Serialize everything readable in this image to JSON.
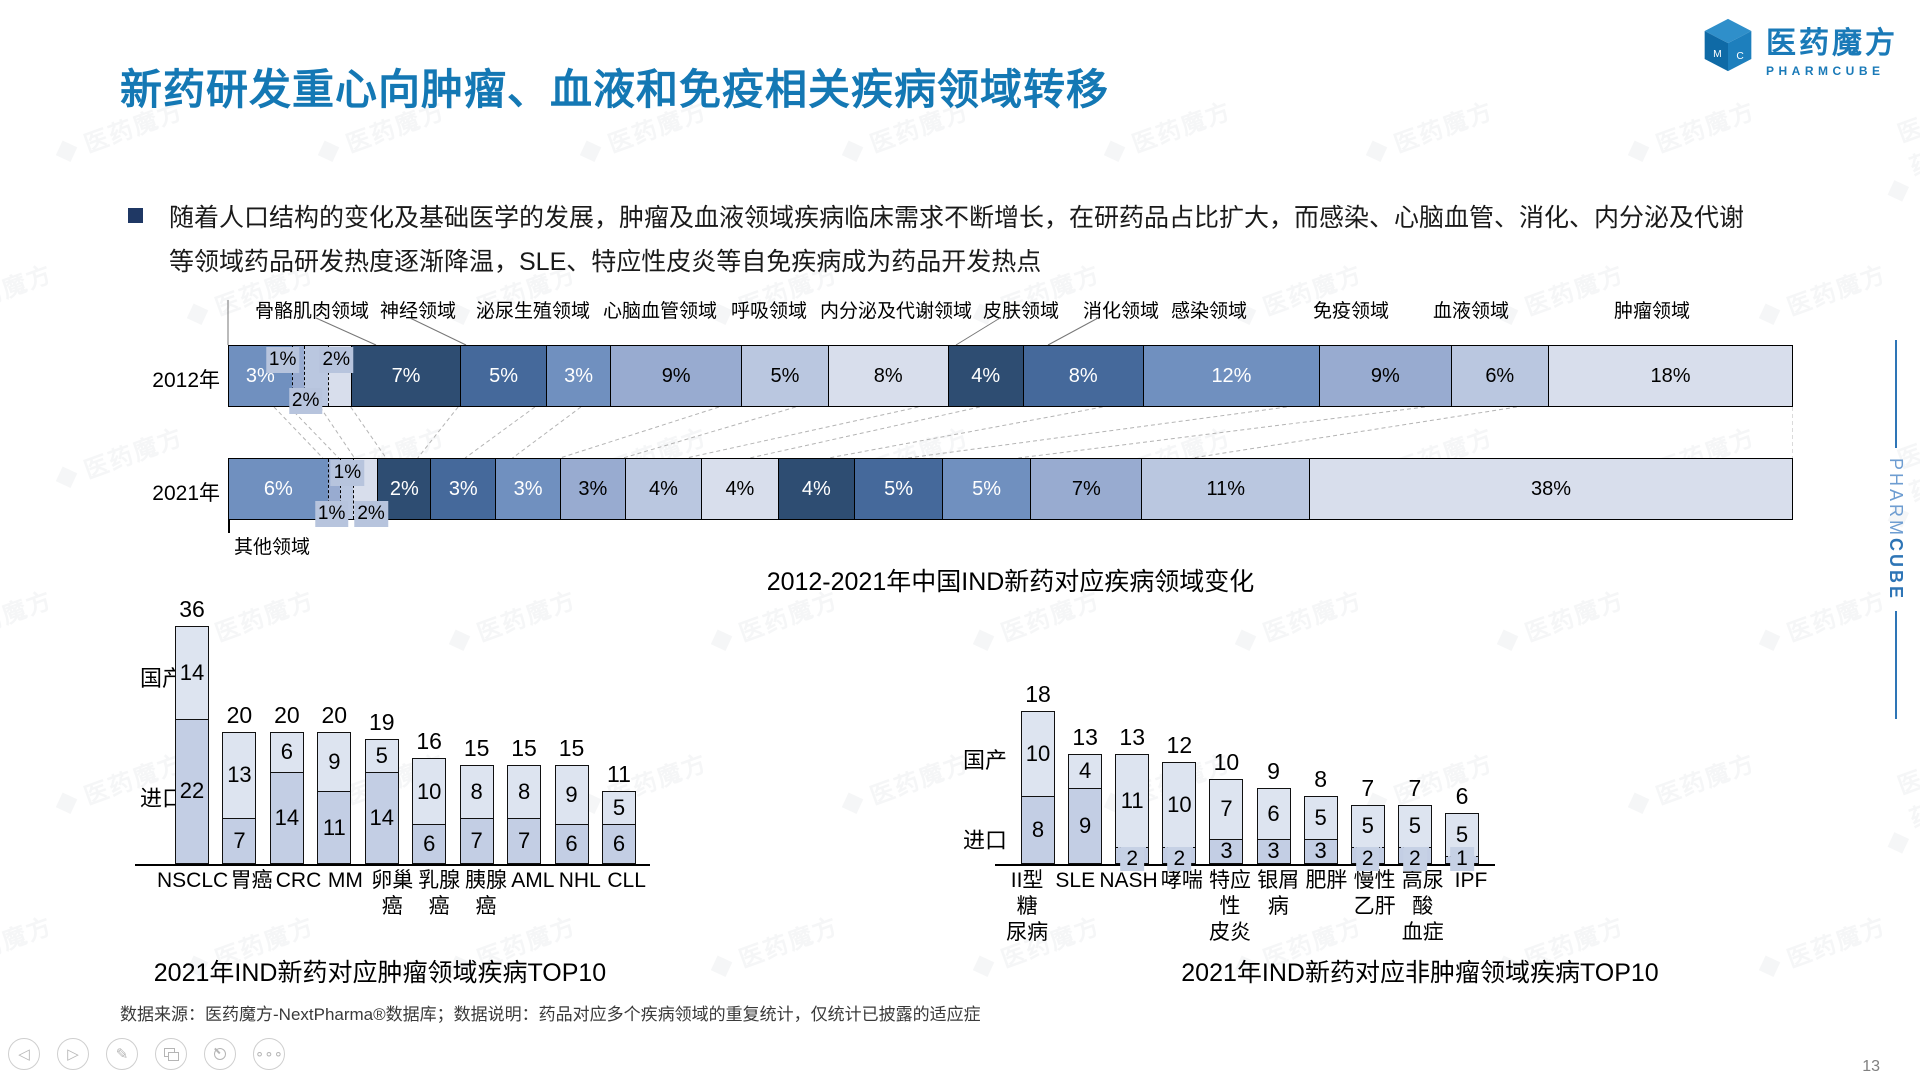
{
  "slide": {
    "title": "新药研发重心向肿瘤、血液和免疫相关疾病领域转移",
    "bullet": "随着人口结构的变化及基础医学的发展，肿瘤及血液领域疾病临床需求不断增长，在研药品占比扩大，而感染、心脑血管、消化、内分泌及代谢等领域药品研发热度逐渐降温，SLE、特应性皮炎等自免疾病成为药品开发热点",
    "footer": "数据来源：医药魔方-NextPharma®数据库；数据说明：药品对应多个疾病领域的重复统计，仅统计已披露的适应症",
    "page_number": "13"
  },
  "logo": {
    "cn": "医药魔方",
    "en": "PHARMCUBE"
  },
  "side": {
    "pharm": "PHARM",
    "cube": "CUBE"
  },
  "watermark": {
    "text": "医药魔方"
  },
  "toolbar_icons": [
    "prev-arrow",
    "next-arrow",
    "pen",
    "slides",
    "magnifier",
    "more-dots"
  ],
  "palette": {
    "cycle": [
      "#2e4d72",
      "#45699b",
      "#7090bf",
      "#98abd0",
      "#bac7e0",
      "#d8deec"
    ],
    "title_blue": "#1478b4",
    "brand_blue": "#1a7ab8",
    "bar_domestic": "#dde4f0",
    "bar_imported": "#c3cee4"
  },
  "chart_data": [
    {
      "type": "bar",
      "subtype": "horizontal-stacked-100pct-compare",
      "title": "2012-2021年中国IND新药对应疾病领域变化",
      "unit": "%",
      "area_labels": [
        "骨骼肌肉领域",
        "神经领域",
        "泌尿生殖领域",
        "心脑血管领域",
        "呼吸领域",
        "内分泌及代谢领域",
        "皮肤领域",
        "消化领域",
        "感染领域",
        "免疫领域",
        "血液领域",
        "肿瘤领域"
      ],
      "other_label": "其他领域",
      "rows": [
        {
          "label": "2012年",
          "values": [
            3,
            1,
            2,
            2,
            7,
            5,
            3,
            9,
            5,
            8,
            4,
            8,
            12,
            9,
            6,
            18
          ]
        },
        {
          "label": "2021年",
          "values": [
            6,
            1,
            1,
            2,
            2,
            3,
            3,
            3,
            4,
            4,
            4,
            5,
            5,
            7,
            11,
            38
          ]
        }
      ]
    },
    {
      "type": "bar",
      "subtype": "vertical-stacked",
      "title": "2021年IND新药对应肿瘤领域疾病TOP10",
      "legend": {
        "domestic": "国产",
        "imported": "进口"
      },
      "categories": [
        "NSCLC",
        "胃癌",
        "CRC",
        "MM",
        "卵巢癌",
        "乳腺癌",
        "胰腺癌",
        "AML",
        "NHL",
        "CLL"
      ],
      "series": [
        {
          "name": "国产",
          "values": [
            14,
            13,
            6,
            9,
            5,
            10,
            8,
            8,
            9,
            5
          ]
        },
        {
          "name": "进口",
          "values": [
            22,
            7,
            14,
            11,
            14,
            6,
            7,
            7,
            6,
            6
          ]
        }
      ],
      "totals": [
        36,
        20,
        20,
        20,
        19,
        16,
        15,
        15,
        15,
        11
      ]
    },
    {
      "type": "bar",
      "subtype": "vertical-stacked",
      "title": "2021年IND新药对应非肿瘤领域疾病TOP10",
      "legend": {
        "domestic": "国产",
        "imported": "进口"
      },
      "categories": [
        "II型糖\n尿病",
        "SLE",
        "NASH",
        "哮喘",
        "特应性\n皮炎",
        "银屑病",
        "肥胖",
        "慢性\n乙肝",
        "高尿酸\n血症",
        "IPF"
      ],
      "series": [
        {
          "name": "国产",
          "values": [
            10,
            4,
            11,
            10,
            7,
            6,
            5,
            5,
            5,
            5
          ]
        },
        {
          "name": "进口",
          "values": [
            8,
            9,
            2,
            2,
            3,
            3,
            3,
            2,
            2,
            1
          ]
        }
      ],
      "totals": [
        18,
        13,
        13,
        12,
        10,
        9,
        8,
        7,
        7,
        6
      ]
    }
  ]
}
